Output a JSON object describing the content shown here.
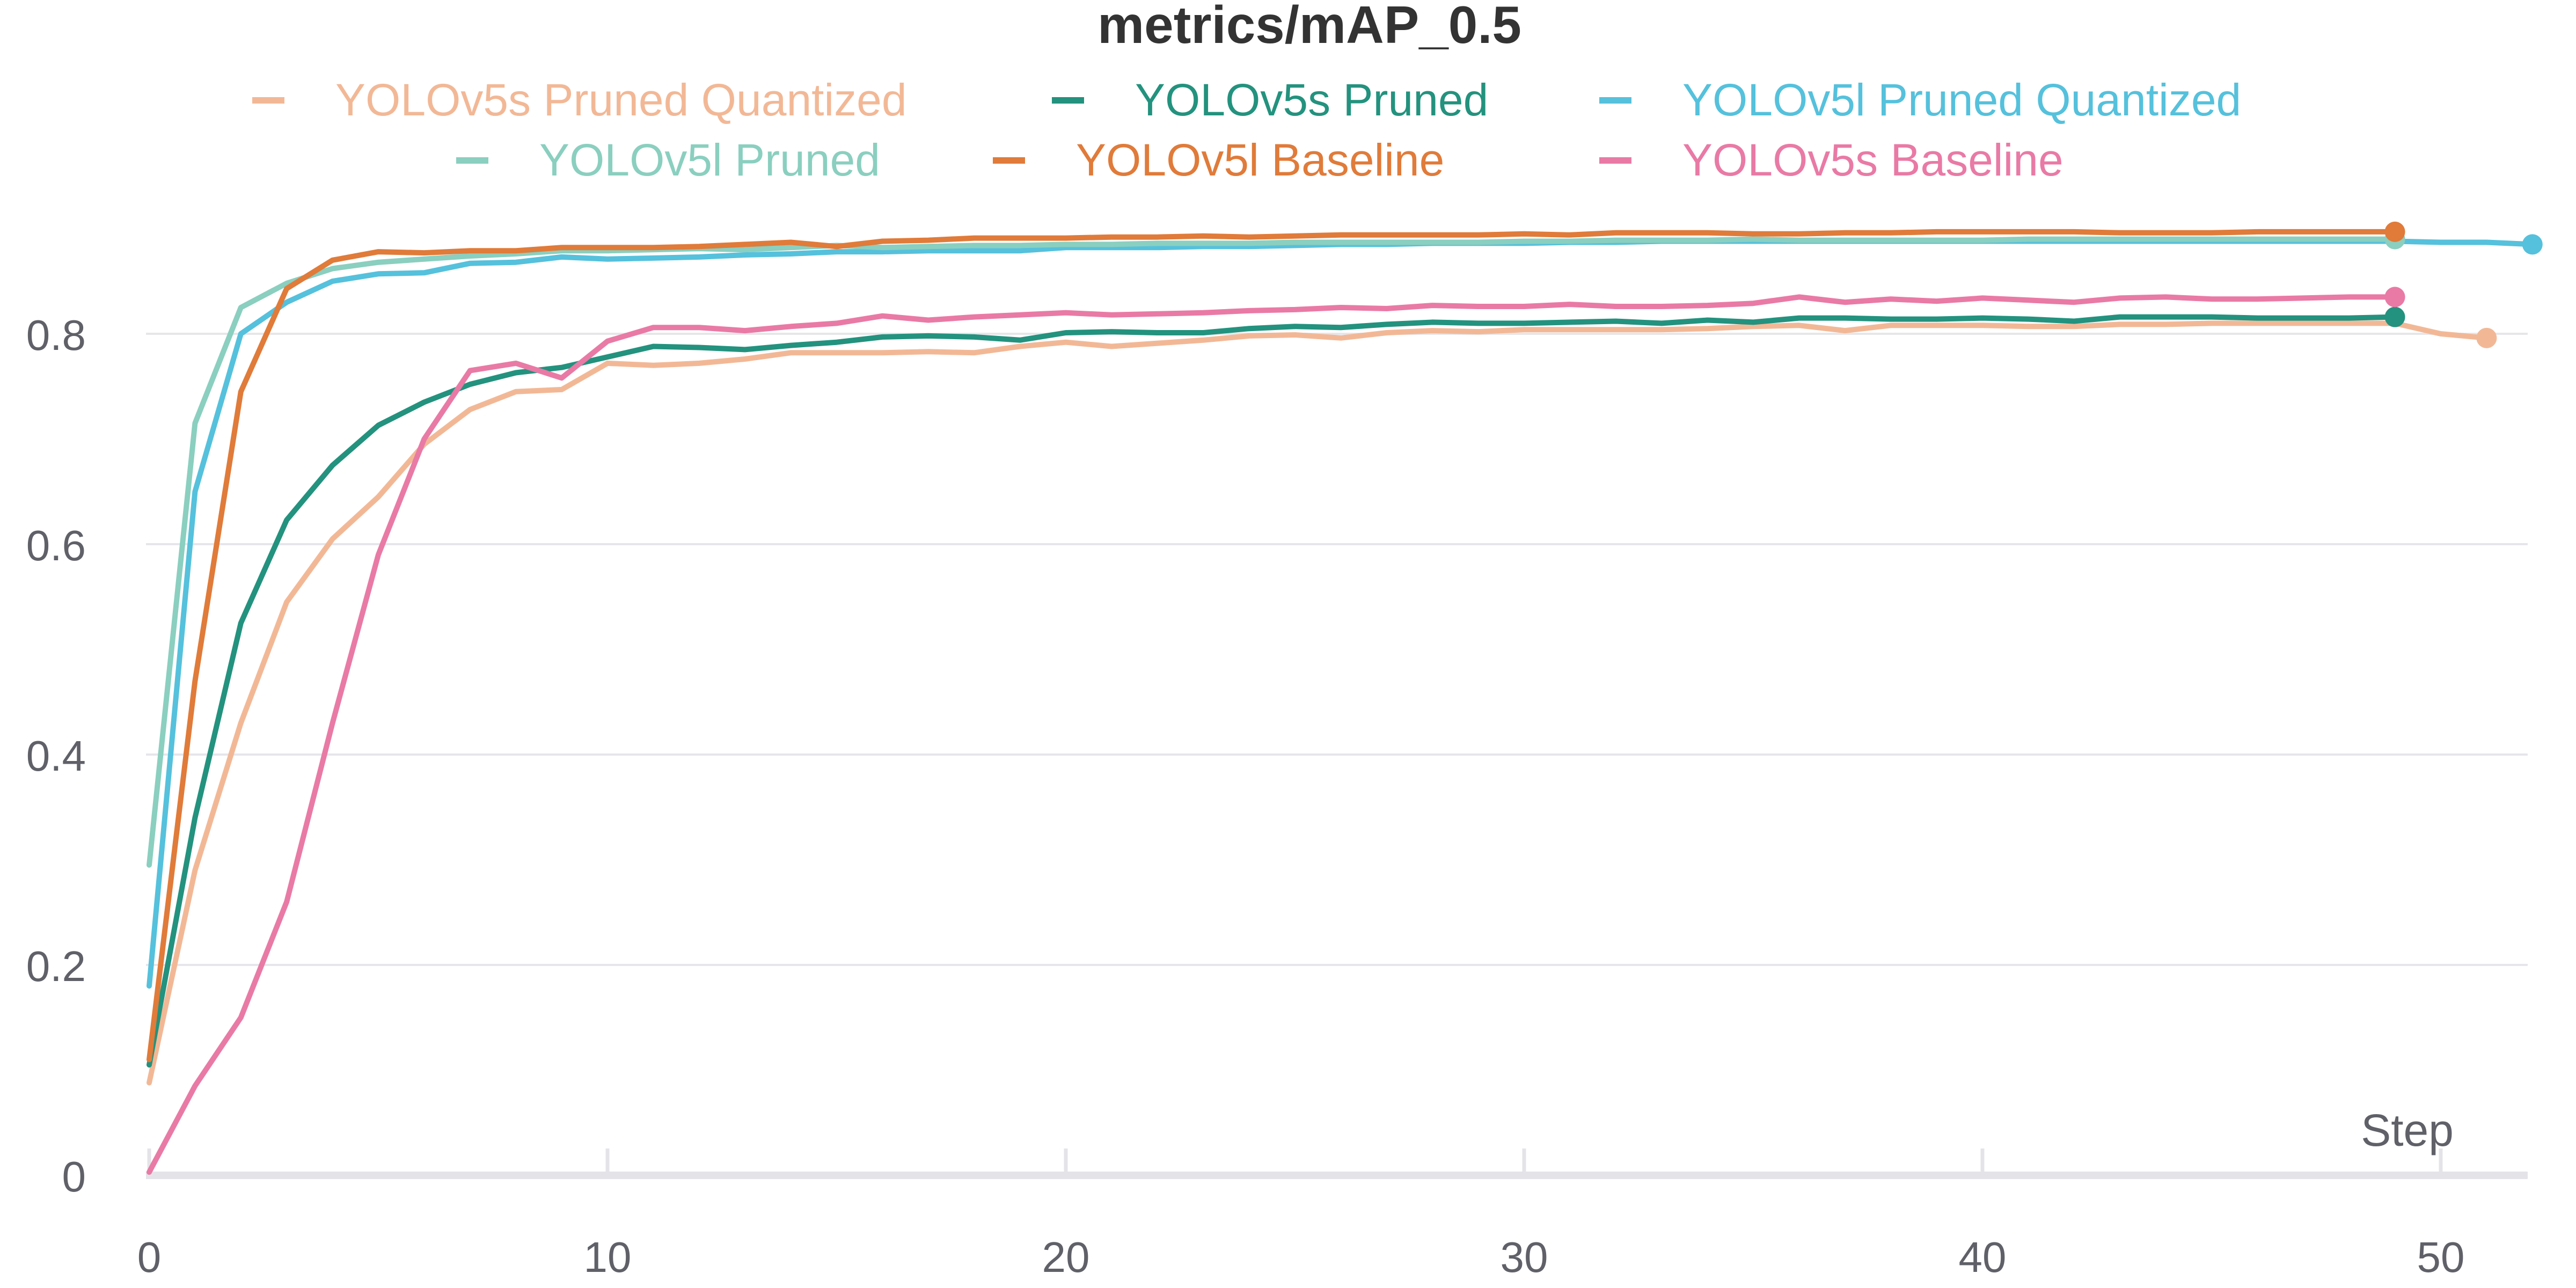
{
  "chart_data": {
    "type": "line",
    "title": "metrics/mAP_0.5",
    "xlabel": "Step",
    "ylabel": "",
    "xlim": [
      0,
      52
    ],
    "ylim": [
      0,
      0.9
    ],
    "x_ticks": [
      0,
      10,
      20,
      30,
      40,
      50
    ],
    "y_ticks": [
      0,
      0.2,
      0.4,
      0.6,
      0.8
    ],
    "grid": "horizontal",
    "legend_position": "top",
    "series": [
      {
        "name": "YOLOv5s Pruned Quantized",
        "color": "#F2B896",
        "x": [
          0,
          1,
          2,
          3,
          4,
          5,
          6,
          7,
          8,
          9,
          10,
          11,
          12,
          13,
          14,
          15,
          16,
          17,
          18,
          19,
          20,
          21,
          22,
          23,
          24,
          25,
          26,
          27,
          28,
          29,
          30,
          31,
          32,
          33,
          34,
          35,
          36,
          37,
          38,
          39,
          40,
          41,
          42,
          43,
          44,
          45,
          46,
          47,
          48,
          49,
          50,
          51
        ],
        "values": [
          0.088,
          0.29,
          0.43,
          0.545,
          0.605,
          0.645,
          0.695,
          0.728,
          0.745,
          0.747,
          0.772,
          0.77,
          0.772,
          0.776,
          0.782,
          0.782,
          0.782,
          0.783,
          0.782,
          0.788,
          0.792,
          0.788,
          0.791,
          0.794,
          0.798,
          0.799,
          0.796,
          0.801,
          0.803,
          0.802,
          0.804,
          0.804,
          0.804,
          0.804,
          0.805,
          0.807,
          0.808,
          0.803,
          0.808,
          0.808,
          0.808,
          0.807,
          0.807,
          0.809,
          0.809,
          0.81,
          0.81,
          0.81,
          0.81,
          0.81,
          0.8,
          0.796
        ]
      },
      {
        "name": "YOLOv5s Pruned",
        "color": "#23927E",
        "x": [
          0,
          1,
          2,
          3,
          4,
          5,
          6,
          7,
          8,
          9,
          10,
          11,
          12,
          13,
          14,
          15,
          16,
          17,
          18,
          19,
          20,
          21,
          22,
          23,
          24,
          25,
          26,
          27,
          28,
          29,
          30,
          31,
          32,
          33,
          34,
          35,
          36,
          37,
          38,
          39,
          40,
          41,
          42,
          43,
          44,
          45,
          46,
          47,
          48,
          49
        ],
        "values": [
          0.105,
          0.34,
          0.525,
          0.623,
          0.675,
          0.713,
          0.735,
          0.752,
          0.763,
          0.768,
          0.778,
          0.788,
          0.787,
          0.785,
          0.789,
          0.792,
          0.797,
          0.798,
          0.797,
          0.794,
          0.801,
          0.802,
          0.801,
          0.801,
          0.805,
          0.807,
          0.806,
          0.809,
          0.811,
          0.81,
          0.81,
          0.811,
          0.812,
          0.81,
          0.813,
          0.811,
          0.815,
          0.815,
          0.814,
          0.814,
          0.815,
          0.814,
          0.812,
          0.816,
          0.816,
          0.816,
          0.815,
          0.815,
          0.815,
          0.816
        ]
      },
      {
        "name": "YOLOv5l Pruned Quantized",
        "color": "#55C1DC",
        "x": [
          0,
          1,
          2,
          3,
          4,
          5,
          6,
          7,
          8,
          9,
          10,
          11,
          12,
          13,
          14,
          15,
          16,
          17,
          18,
          19,
          20,
          21,
          22,
          23,
          24,
          25,
          26,
          27,
          28,
          29,
          30,
          31,
          32,
          33,
          34,
          35,
          36,
          37,
          38,
          39,
          40,
          41,
          42,
          43,
          44,
          45,
          46,
          47,
          48,
          49,
          50,
          51,
          52
        ],
        "values": [
          0.18,
          0.65,
          0.8,
          0.83,
          0.85,
          0.857,
          0.858,
          0.867,
          0.868,
          0.873,
          0.871,
          0.872,
          0.873,
          0.875,
          0.876,
          0.878,
          0.878,
          0.879,
          0.879,
          0.879,
          0.882,
          0.882,
          0.882,
          0.883,
          0.883,
          0.884,
          0.885,
          0.885,
          0.886,
          0.886,
          0.886,
          0.887,
          0.887,
          0.888,
          0.888,
          0.888,
          0.888,
          0.888,
          0.888,
          0.888,
          0.888,
          0.888,
          0.888,
          0.888,
          0.888,
          0.888,
          0.888,
          0.888,
          0.888,
          0.888,
          0.887,
          0.887,
          0.885
        ]
      },
      {
        "name": "YOLOv5l Pruned",
        "color": "#8ACFBF",
        "x": [
          0,
          1,
          2,
          3,
          4,
          5,
          6,
          7,
          8,
          9,
          10,
          11,
          12,
          13,
          14,
          15,
          16,
          17,
          18,
          19,
          20,
          21,
          22,
          23,
          24,
          25,
          26,
          27,
          28,
          29,
          30,
          31,
          32,
          33,
          34,
          35,
          36,
          37,
          38,
          39,
          40,
          41,
          42,
          43,
          44,
          45,
          46,
          47,
          48,
          49
        ],
        "values": [
          0.295,
          0.715,
          0.825,
          0.848,
          0.862,
          0.868,
          0.871,
          0.874,
          0.876,
          0.879,
          0.879,
          0.88,
          0.881,
          0.88,
          0.882,
          0.884,
          0.882,
          0.883,
          0.884,
          0.884,
          0.885,
          0.885,
          0.886,
          0.886,
          0.886,
          0.887,
          0.887,
          0.887,
          0.887,
          0.887,
          0.888,
          0.888,
          0.889,
          0.889,
          0.889,
          0.89,
          0.889,
          0.889,
          0.889,
          0.889,
          0.889,
          0.89,
          0.89,
          0.89,
          0.89,
          0.89,
          0.89,
          0.89,
          0.89,
          0.89
        ]
      },
      {
        "name": "YOLOv5l Baseline",
        "color": "#E07B3A",
        "x": [
          0,
          1,
          2,
          3,
          4,
          5,
          6,
          7,
          8,
          9,
          10,
          11,
          12,
          13,
          14,
          15,
          16,
          17,
          18,
          19,
          20,
          21,
          22,
          23,
          24,
          25,
          26,
          27,
          28,
          29,
          30,
          31,
          32,
          33,
          34,
          35,
          36,
          37,
          38,
          39,
          40,
          41,
          42,
          43,
          44,
          45,
          46,
          47,
          48,
          49
        ],
        "values": [
          0.11,
          0.47,
          0.745,
          0.843,
          0.87,
          0.878,
          0.877,
          0.879,
          0.879,
          0.882,
          0.882,
          0.882,
          0.883,
          0.885,
          0.887,
          0.883,
          0.888,
          0.889,
          0.891,
          0.891,
          0.891,
          0.892,
          0.892,
          0.893,
          0.892,
          0.893,
          0.894,
          0.894,
          0.894,
          0.894,
          0.895,
          0.894,
          0.896,
          0.896,
          0.896,
          0.895,
          0.895,
          0.896,
          0.896,
          0.897,
          0.897,
          0.897,
          0.897,
          0.896,
          0.896,
          0.896,
          0.897,
          0.897,
          0.897,
          0.897
        ]
      },
      {
        "name": "YOLOv5s Baseline",
        "color": "#E97AA5",
        "x": [
          0,
          1,
          2,
          3,
          4,
          5,
          6,
          7,
          8,
          9,
          10,
          11,
          12,
          13,
          14,
          15,
          16,
          17,
          18,
          19,
          20,
          21,
          22,
          23,
          24,
          25,
          26,
          27,
          28,
          29,
          30,
          31,
          32,
          33,
          34,
          35,
          36,
          37,
          38,
          39,
          40,
          41,
          42,
          43,
          44,
          45,
          46,
          47,
          48,
          49
        ],
        "values": [
          0.003,
          0.085,
          0.15,
          0.26,
          0.43,
          0.59,
          0.7,
          0.765,
          0.772,
          0.758,
          0.793,
          0.806,
          0.806,
          0.803,
          0.807,
          0.81,
          0.817,
          0.813,
          0.816,
          0.818,
          0.82,
          0.818,
          0.819,
          0.82,
          0.822,
          0.823,
          0.825,
          0.824,
          0.827,
          0.826,
          0.826,
          0.828,
          0.826,
          0.826,
          0.827,
          0.829,
          0.835,
          0.83,
          0.833,
          0.831,
          0.834,
          0.832,
          0.83,
          0.834,
          0.835,
          0.833,
          0.833,
          0.834,
          0.835,
          0.835
        ]
      }
    ]
  }
}
